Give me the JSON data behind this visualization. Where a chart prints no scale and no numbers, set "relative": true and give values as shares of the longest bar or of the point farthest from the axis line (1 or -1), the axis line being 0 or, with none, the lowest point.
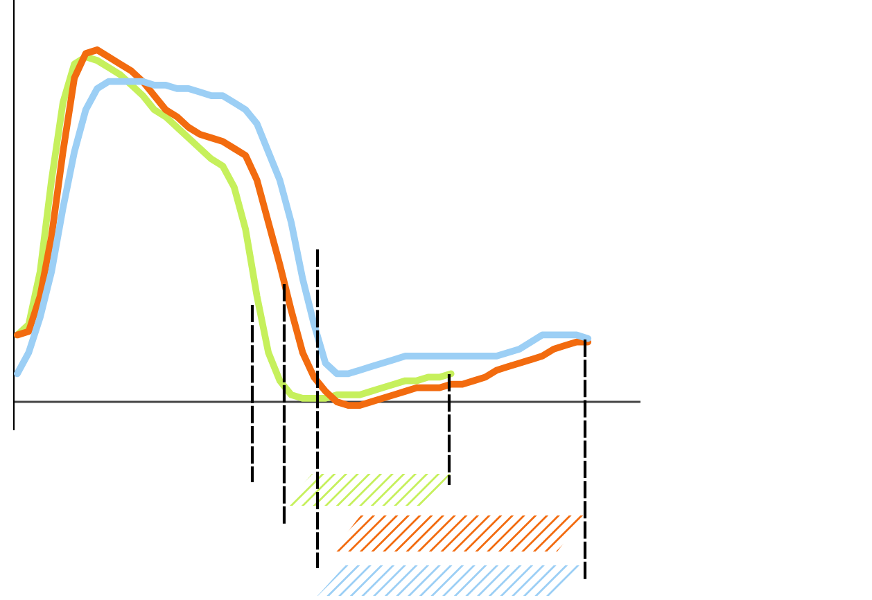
{
  "chart_data": {
    "type": "line",
    "relative": true,
    "categories": [
      null,
      null,
      null,
      null,
      null,
      null,
      null,
      null,
      null,
      null,
      null,
      null,
      null,
      null,
      null,
      null,
      null,
      null,
      null,
      null,
      null,
      null,
      null,
      null,
      null,
      null,
      null,
      null,
      null,
      null,
      null,
      null,
      null,
      null,
      null,
      null,
      null,
      null,
      null,
      null,
      null,
      null,
      null,
      null,
      null,
      null,
      null,
      null,
      null,
      null,
      null
    ],
    "series": [
      {
        "color": "#c6f05c",
        "values": [
          0.19,
          0.22,
          0.37,
          0.63,
          0.85,
          0.96,
          0.98,
          0.97,
          0.95,
          0.93,
          0.9,
          0.87,
          0.83,
          0.81,
          0.78,
          0.75,
          0.72,
          0.69,
          0.67,
          0.61,
          0.49,
          0.3,
          0.14,
          0.06,
          0.02,
          0.01,
          0.01,
          0.01,
          0.02,
          0.02,
          0.02,
          0.03,
          0.04,
          0.05,
          0.06,
          0.06,
          0.07,
          0.07,
          0.08,
          null,
          null,
          null,
          null,
          null,
          null,
          null,
          null,
          null,
          null,
          null,
          null
        ]
      },
      {
        "color": "#f26b0f",
        "values": [
          0.19,
          0.2,
          0.3,
          0.47,
          0.71,
          0.92,
          0.99,
          1.0,
          0.98,
          0.96,
          0.94,
          0.91,
          0.87,
          0.83,
          0.81,
          0.78,
          0.76,
          0.75,
          0.74,
          0.72,
          0.7,
          0.63,
          0.51,
          0.39,
          0.26,
          0.14,
          0.07,
          0.03,
          0.0,
          -0.01,
          -0.01,
          0.0,
          0.01,
          0.02,
          0.03,
          0.04,
          0.04,
          0.04,
          0.05,
          0.05,
          0.06,
          0.07,
          0.09,
          0.1,
          0.11,
          0.12,
          0.13,
          0.15,
          0.16,
          0.17,
          0.17
        ]
      },
      {
        "color": "#9ccff5",
        "values": [
          0.08,
          0.14,
          0.24,
          0.37,
          0.55,
          0.71,
          0.83,
          0.89,
          0.91,
          0.91,
          0.91,
          0.91,
          0.9,
          0.9,
          0.89,
          0.89,
          0.88,
          0.87,
          0.87,
          0.85,
          0.83,
          0.79,
          0.71,
          0.63,
          0.51,
          0.35,
          0.22,
          0.11,
          0.08,
          0.08,
          0.09,
          0.1,
          0.11,
          0.12,
          0.13,
          0.13,
          0.13,
          0.13,
          0.13,
          0.13,
          0.13,
          0.13,
          0.13,
          0.14,
          0.15,
          0.17,
          0.19,
          0.19,
          0.19,
          0.19,
          0.18
        ]
      }
    ],
    "marker": "none",
    "line_style": "solid"
  }
}
